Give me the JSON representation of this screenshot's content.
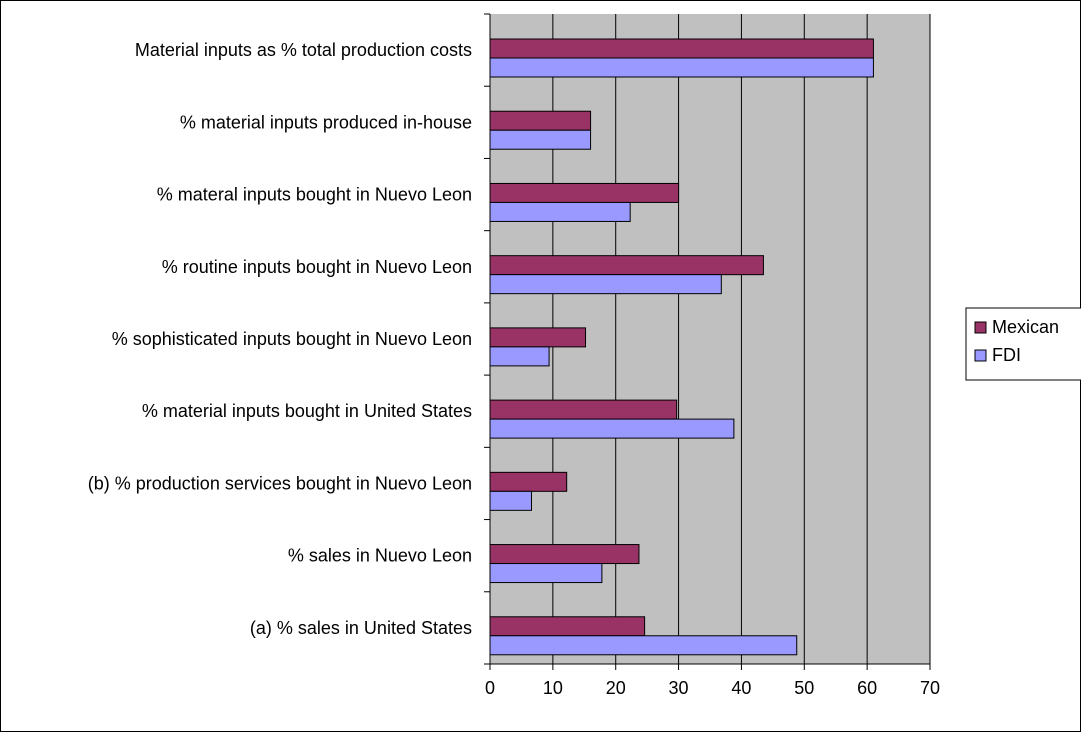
{
  "chart_data": {
    "type": "bar",
    "orientation": "horizontal",
    "categories": [
      "Material inputs as % total production costs",
      "% material inputs produced in-house",
      "% materal inputs bought in Nuevo Leon",
      "% routine inputs bought in Nuevo Leon",
      "% sophisticated inputs bought in Nuevo Leon",
      "% material inputs bought in United States",
      "(b) % production services bought in Nuevo Leon",
      "% sales in Nuevo Leon",
      "(a) % sales in United States"
    ],
    "series": [
      {
        "name": "Mexican",
        "color": "#993366",
        "values": [
          61,
          16,
          30,
          43.5,
          15.2,
          29.7,
          12.2,
          23.7,
          24.6
        ]
      },
      {
        "name": "FDI",
        "color": "#9999ff",
        "values": [
          61,
          16,
          22.3,
          36.8,
          9.4,
          38.8,
          6.6,
          17.8,
          48.8
        ]
      }
    ],
    "xlim": [
      0,
      70
    ],
    "xticks": [
      0,
      10,
      20,
      30,
      40,
      50,
      60,
      70
    ],
    "grid": true,
    "plot_background": "#c0c0c0",
    "legend_position": "right",
    "title": "",
    "xlabel": "",
    "ylabel": ""
  }
}
